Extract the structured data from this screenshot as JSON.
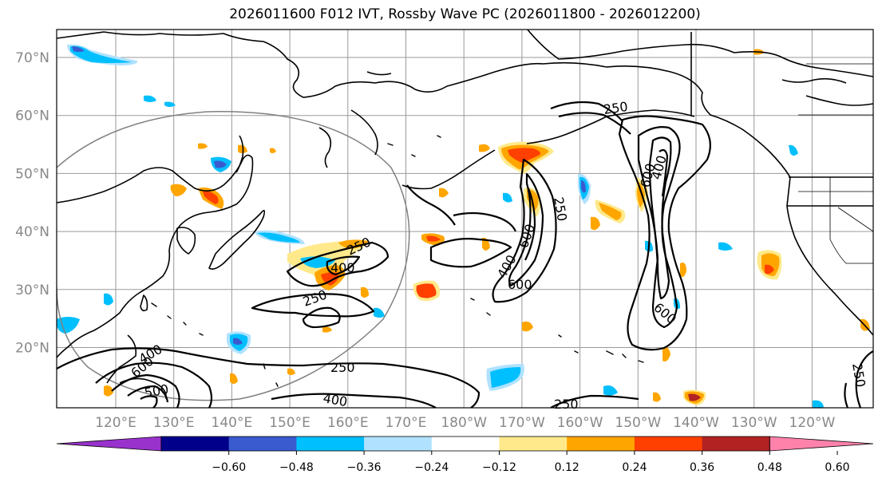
{
  "title": "2026011600 F012 IVT, Rossby Wave PC (2026011800 - 2026012200)",
  "map": {
    "lon_ticks": [
      "120°E",
      "130°E",
      "140°E",
      "150°E",
      "160°E",
      "170°E",
      "180°W",
      "170°W",
      "160°W",
      "150°W",
      "140°W",
      "130°W",
      "120°W"
    ],
    "lat_ticks": [
      "70°N",
      "60°N",
      "50°N",
      "40°N",
      "30°N",
      "20°N"
    ],
    "contour_labels": [
      {
        "text": "250"
      },
      {
        "text": "400"
      },
      {
        "text": "600"
      },
      {
        "text": "250"
      },
      {
        "text": "600"
      },
      {
        "text": "400"
      },
      {
        "text": "250"
      },
      {
        "text": "400"
      },
      {
        "text": "250"
      },
      {
        "text": "600"
      },
      {
        "text": "400"
      },
      {
        "text": "600"
      },
      {
        "text": "250"
      },
      {
        "text": "400"
      },
      {
        "text": "600"
      },
      {
        "text": "500"
      },
      {
        "text": "250"
      },
      {
        "text": "250"
      }
    ]
  },
  "colorbar": {
    "colors": [
      "#9932CC",
      "#00008B",
      "#3A5BD0",
      "#00BFFF",
      "#B0E2FF",
      "#FFFFFF",
      "#FFE98A",
      "#FFA500",
      "#FF4000",
      "#B22222",
      "#FF82AB"
    ],
    "tick_labels": [
      "−0.60",
      "−0.48",
      "−0.36",
      "−0.24",
      "−0.12",
      "0.12",
      "0.24",
      "0.36",
      "0.48",
      "0.60"
    ]
  }
}
